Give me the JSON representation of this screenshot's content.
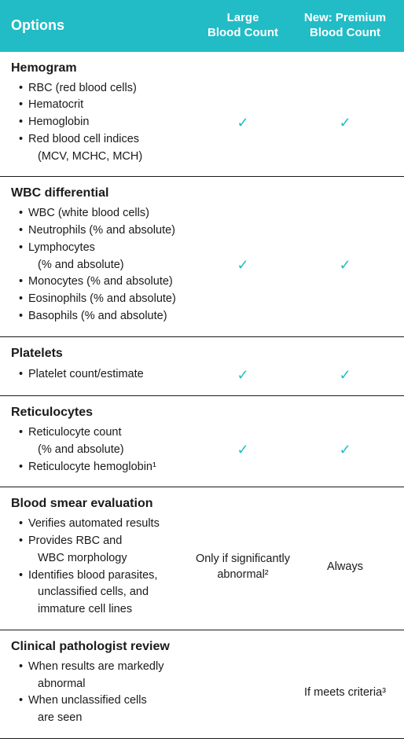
{
  "colors": {
    "header_bg": "#22bcc6",
    "header_text": "#ffffff",
    "body_text": "#1a1a1a",
    "rule": "#1a1a1a",
    "check": "#22bcc6"
  },
  "check_glyph": "✓",
  "header": {
    "options": "Options",
    "col1_line1": "Large",
    "col1_line2": "Blood Count",
    "col2_line1": "New: Premium",
    "col2_line2": "Blood Count"
  },
  "sections": [
    {
      "title": "Hemogram",
      "bullets": [
        {
          "text": "RBC (red blood cells)"
        },
        {
          "text": "Hematocrit"
        },
        {
          "text": "Hemoglobin"
        },
        {
          "text": "Red blood cell indices",
          "sub": "(MCV, MCHC, MCH)"
        }
      ],
      "col1": "✓",
      "col2": "✓",
      "col1_is_check": true,
      "col2_is_check": true
    },
    {
      "title": "WBC differential",
      "bullets": [
        {
          "text": "WBC (white blood cells)"
        },
        {
          "text": "Neutrophils (% and absolute)"
        },
        {
          "text": "Lymphocytes",
          "sub": "(% and absolute)"
        },
        {
          "text": "Monocytes (% and absolute)"
        },
        {
          "text": "Eosinophils (% and absolute)"
        },
        {
          "text": "Basophils (% and absolute)"
        }
      ],
      "col1": "✓",
      "col2": "✓",
      "col1_is_check": true,
      "col2_is_check": true
    },
    {
      "title": "Platelets",
      "bullets": [
        {
          "text": "Platelet count/estimate"
        }
      ],
      "col1": "✓",
      "col2": "✓",
      "col1_is_check": true,
      "col2_is_check": true
    },
    {
      "title": "Reticulocytes",
      "bullets": [
        {
          "text": "Reticulocyte count",
          "sub": "(% and absolute)"
        },
        {
          "text": "Reticulocyte hemoglobin¹"
        }
      ],
      "col1": "✓",
      "col2": "✓",
      "col1_is_check": true,
      "col2_is_check": true
    },
    {
      "title": "Blood smear evaluation",
      "bullets": [
        {
          "text": "Verifies automated results"
        },
        {
          "text": "Provides RBC and",
          "sub": "WBC morphology"
        },
        {
          "text": "Identifies blood parasites,",
          "sub": "unclassified cells, and",
          "sub2": "immature cell lines"
        }
      ],
      "col1": "Only if significantly abnormal²",
      "col2": "Always",
      "col1_is_check": false,
      "col2_is_check": false
    },
    {
      "title": "Clinical pathologist review",
      "bullets": [
        {
          "text": "When results are markedly",
          "sub": "abnormal"
        },
        {
          "text": "When unclassified cells",
          "sub": "are seen"
        }
      ],
      "col1": "",
      "col2": "If meets criteria³",
      "col1_is_check": false,
      "col2_is_check": false
    }
  ]
}
